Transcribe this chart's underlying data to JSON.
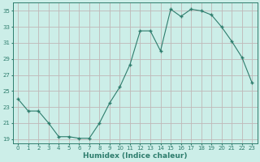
{
  "x": [
    0,
    1,
    2,
    3,
    4,
    5,
    6,
    7,
    8,
    9,
    10,
    11,
    12,
    13,
    14,
    15,
    16,
    17,
    18,
    19,
    20,
    21,
    22,
    23
  ],
  "y": [
    24.0,
    22.5,
    22.5,
    21.0,
    19.3,
    19.3,
    19.1,
    19.1,
    21.0,
    23.5,
    25.5,
    28.3,
    32.5,
    32.5,
    30.0,
    35.2,
    34.3,
    35.2,
    35.0,
    34.5,
    33.0,
    31.2,
    29.2,
    26.0
  ],
  "line_color": "#2e7d6d",
  "marker_color": "#2e7d6d",
  "bg_color": "#cceee8",
  "grid_color": "#c0b8b8",
  "xlabel": "Humidex (Indice chaleur)",
  "xlim": [
    -0.5,
    23.5
  ],
  "ylim": [
    18.5,
    36.0
  ],
  "yticks": [
    19,
    21,
    23,
    25,
    27,
    29,
    31,
    33,
    35
  ],
  "xticks": [
    0,
    1,
    2,
    3,
    4,
    5,
    6,
    7,
    8,
    9,
    10,
    11,
    12,
    13,
    14,
    15,
    16,
    17,
    18,
    19,
    20,
    21,
    22,
    23
  ],
  "tick_fontsize": 5.0,
  "xlabel_fontsize": 6.5
}
